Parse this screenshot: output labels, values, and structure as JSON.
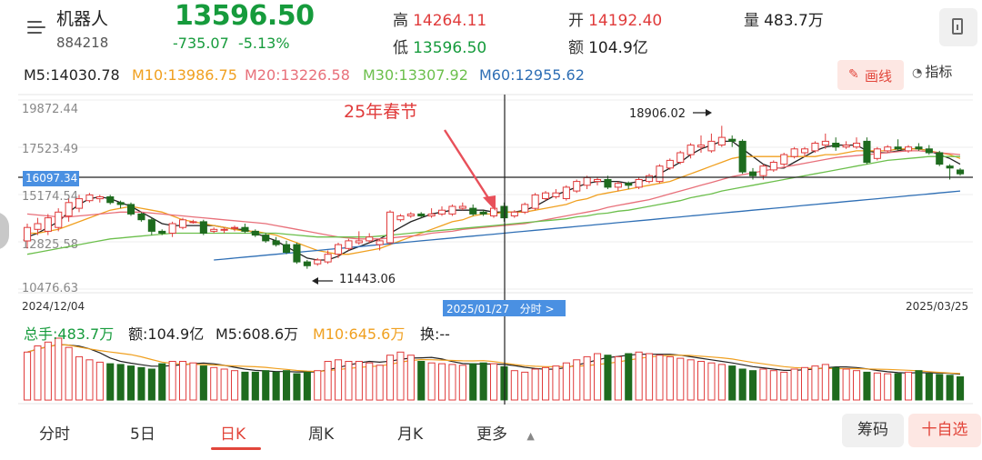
{
  "header": {
    "name": "机器人",
    "code": "884218",
    "price": "13596.50",
    "change": "-735.07",
    "change_pct": "-5.13%",
    "high_label": "高",
    "high": "14264.11",
    "low_label": "低",
    "low": "13596.50",
    "open_label": "开",
    "open": "14192.40",
    "amount_label": "额",
    "amount": "104.9亿",
    "volume_label": "量",
    "volume": "483.7万"
  },
  "ma_row": {
    "ma5": "M5:14030.78",
    "ma10": "M10:13986.75",
    "ma20": "M20:13226.58",
    "ma30": "M30:13307.92",
    "ma60": "M60:12955.62",
    "draw_label": "画线",
    "indicator_label": "指标"
  },
  "colors": {
    "up": "#e03b3b",
    "down": "#1e6b1e",
    "ma5": "#222222",
    "ma10": "#f0a020",
    "ma20": "#e8707a",
    "ma30": "#6cbf4c",
    "ma60": "#2f6fb5"
  },
  "chart": {
    "y_ticks": [
      "19872.44",
      "17523.49",
      "15174.54",
      "12825.58",
      "10476.63"
    ],
    "crosshair_price": "16097.34",
    "crosshair_date": "2025/01/27",
    "intraday_link": "分时 >",
    "date_start": "2024/12/04",
    "date_end": "2025/03/25",
    "annotation": "25年春节",
    "high_mark": "18906.02",
    "low_mark": "11443.06"
  },
  "volume_header": {
    "total": "总手:483.7万",
    "amount": "额:104.9亿",
    "m5": "M5:608.6万",
    "m10": "M10:645.6万",
    "turnover": "换:--"
  },
  "tabs": [
    "分时",
    "5日",
    "日K",
    "周K",
    "月K",
    "更多"
  ],
  "buttons": {
    "chips": "筹码",
    "add_watch": "十自选"
  },
  "chart_data": {
    "type": "candlestick",
    "x_range": [
      "2024/12/04",
      "2025/03/25"
    ],
    "ylim": [
      10476.63,
      19872.44
    ],
    "candles": [
      {
        "o": 12900,
        "c": 13600,
        "h": 13800,
        "l": 12500
      },
      {
        "o": 13500,
        "c": 13800,
        "h": 14100,
        "l": 13200
      },
      {
        "o": 13400,
        "c": 14100,
        "h": 14300,
        "l": 13200
      },
      {
        "o": 13600,
        "c": 14400,
        "h": 14600,
        "l": 13400
      },
      {
        "o": 14200,
        "c": 14900,
        "h": 15100,
        "l": 13900
      },
      {
        "o": 14600,
        "c": 15100,
        "h": 15300,
        "l": 14400
      },
      {
        "o": 15000,
        "c": 15300,
        "h": 15400,
        "l": 14900
      },
      {
        "o": 15100,
        "c": 15200,
        "h": 15300,
        "l": 14900
      },
      {
        "o": 15200,
        "c": 14900,
        "h": 15300,
        "l": 14800
      },
      {
        "o": 14900,
        "c": 14800,
        "h": 15000,
        "l": 14600
      },
      {
        "o": 14800,
        "c": 14300,
        "h": 14900,
        "l": 14200
      },
      {
        "o": 14300,
        "c": 14000,
        "h": 14400,
        "l": 13900
      },
      {
        "o": 14000,
        "c": 13400,
        "h": 14100,
        "l": 13200
      },
      {
        "o": 13400,
        "c": 13300,
        "h": 13500,
        "l": 13200
      },
      {
        "o": 13300,
        "c": 13800,
        "h": 13900,
        "l": 13100
      },
      {
        "o": 13600,
        "c": 14000,
        "h": 14100,
        "l": 13500
      },
      {
        "o": 13900,
        "c": 13900,
        "h": 14000,
        "l": 13800
      },
      {
        "o": 13900,
        "c": 13300,
        "h": 14000,
        "l": 13200
      },
      {
        "o": 13400,
        "c": 13500,
        "h": 13600,
        "l": 13300
      },
      {
        "o": 13500,
        "c": 13500,
        "h": 13600,
        "l": 13300
      },
      {
        "o": 13600,
        "c": 13600,
        "h": 13700,
        "l": 13400
      },
      {
        "o": 13600,
        "c": 13400,
        "h": 13800,
        "l": 13300
      },
      {
        "o": 13400,
        "c": 13200,
        "h": 13500,
        "l": 13100
      },
      {
        "o": 13200,
        "c": 12900,
        "h": 13300,
        "l": 12800
      },
      {
        "o": 12900,
        "c": 12700,
        "h": 13100,
        "l": 12600
      },
      {
        "o": 12700,
        "c": 12300,
        "h": 12900,
        "l": 12200
      },
      {
        "o": 12700,
        "c": 11800,
        "h": 12800,
        "l": 11700
      },
      {
        "o": 11800,
        "c": 11600,
        "h": 11900,
        "l": 11443
      },
      {
        "o": 11700,
        "c": 11900,
        "h": 12000,
        "l": 11600
      },
      {
        "o": 11800,
        "c": 12200,
        "h": 12400,
        "l": 11700
      },
      {
        "o": 12200,
        "c": 12700,
        "h": 12800,
        "l": 12000
      },
      {
        "o": 12500,
        "c": 12900,
        "h": 13000,
        "l": 12400
      },
      {
        "o": 12800,
        "c": 12900,
        "h": 13400,
        "l": 12700
      },
      {
        "o": 12900,
        "c": 13100,
        "h": 13300,
        "l": 12800
      },
      {
        "o": 12700,
        "c": 12900,
        "h": 13000,
        "l": 12400
      },
      {
        "o": 12800,
        "c": 14400,
        "h": 14500,
        "l": 12700
      },
      {
        "o": 14000,
        "c": 14200,
        "h": 14300,
        "l": 13900
      },
      {
        "o": 14200,
        "c": 14300,
        "h": 14400,
        "l": 14100
      },
      {
        "o": 14300,
        "c": 14200,
        "h": 14400,
        "l": 14100
      },
      {
        "o": 14200,
        "c": 14300,
        "h": 14600,
        "l": 14100
      },
      {
        "o": 14300,
        "c": 14500,
        "h": 14700,
        "l": 14200
      },
      {
        "o": 14300,
        "c": 14700,
        "h": 14800,
        "l": 14200
      },
      {
        "o": 14600,
        "c": 14700,
        "h": 14900,
        "l": 14500
      },
      {
        "o": 14600,
        "c": 14300,
        "h": 14800,
        "l": 14200
      },
      {
        "o": 14400,
        "c": 14300,
        "h": 14500,
        "l": 14200
      },
      {
        "o": 14200,
        "c": 14600,
        "h": 14700,
        "l": 14100
      },
      {
        "o": 14700,
        "c": 14100,
        "h": 14900,
        "l": 13900
      },
      {
        "o": 14200,
        "c": 14400,
        "h": 14500,
        "l": 14100
      },
      {
        "o": 14400,
        "c": 14800,
        "h": 14900,
        "l": 14300
      },
      {
        "o": 14600,
        "c": 15300,
        "h": 15400,
        "l": 14500
      },
      {
        "o": 15100,
        "c": 15400,
        "h": 15500,
        "l": 15000
      },
      {
        "o": 15200,
        "c": 15400,
        "h": 15600,
        "l": 15100
      },
      {
        "o": 15100,
        "c": 15700,
        "h": 15800,
        "l": 15000
      },
      {
        "o": 15500,
        "c": 16000,
        "h": 16100,
        "l": 15400
      },
      {
        "o": 15800,
        "c": 16200,
        "h": 16300,
        "l": 15600
      },
      {
        "o": 16000,
        "c": 16100,
        "h": 16200,
        "l": 15800
      },
      {
        "o": 16100,
        "c": 15700,
        "h": 16300,
        "l": 15600
      },
      {
        "o": 15700,
        "c": 15900,
        "h": 16000,
        "l": 15500
      },
      {
        "o": 15900,
        "c": 15800,
        "h": 16000,
        "l": 15600
      },
      {
        "o": 15700,
        "c": 16100,
        "h": 16200,
        "l": 15600
      },
      {
        "o": 16000,
        "c": 16300,
        "h": 16400,
        "l": 15900
      },
      {
        "o": 16000,
        "c": 16800,
        "h": 16900,
        "l": 15900
      },
      {
        "o": 16700,
        "c": 17100,
        "h": 17200,
        "l": 16600
      },
      {
        "o": 17000,
        "c": 17500,
        "h": 17600,
        "l": 16900
      },
      {
        "o": 17400,
        "c": 17900,
        "h": 18000,
        "l": 17200
      },
      {
        "o": 17800,
        "c": 17900,
        "h": 18400,
        "l": 17500
      },
      {
        "o": 17600,
        "c": 18100,
        "h": 18500,
        "l": 17500
      },
      {
        "o": 17900,
        "c": 18300,
        "h": 18906,
        "l": 17800
      },
      {
        "o": 18200,
        "c": 18100,
        "h": 18400,
        "l": 17800
      },
      {
        "o": 18100,
        "c": 16500,
        "h": 18200,
        "l": 16400
      },
      {
        "o": 16500,
        "c": 16300,
        "h": 16700,
        "l": 16100
      },
      {
        "o": 16300,
        "c": 16800,
        "h": 16900,
        "l": 16100
      },
      {
        "o": 16600,
        "c": 17000,
        "h": 17100,
        "l": 16500
      },
      {
        "o": 16900,
        "c": 17400,
        "h": 17500,
        "l": 16800
      },
      {
        "o": 17300,
        "c": 17700,
        "h": 17800,
        "l": 17200
      },
      {
        "o": 17500,
        "c": 17700,
        "h": 17800,
        "l": 17300
      },
      {
        "o": 17600,
        "c": 18000,
        "h": 18100,
        "l": 17500
      },
      {
        "o": 17900,
        "c": 18100,
        "h": 18500,
        "l": 17700
      },
      {
        "o": 18000,
        "c": 17800,
        "h": 18300,
        "l": 17600
      },
      {
        "o": 17800,
        "c": 17900,
        "h": 18100,
        "l": 17700
      },
      {
        "o": 17800,
        "c": 18000,
        "h": 18300,
        "l": 17700
      },
      {
        "o": 18100,
        "c": 17000,
        "h": 18300,
        "l": 16900
      },
      {
        "o": 17200,
        "c": 17700,
        "h": 17800,
        "l": 17100
      },
      {
        "o": 17600,
        "c": 17800,
        "h": 17900,
        "l": 17500
      },
      {
        "o": 17800,
        "c": 17700,
        "h": 18200,
        "l": 17600
      },
      {
        "o": 17600,
        "c": 17800,
        "h": 17900,
        "l": 17500
      },
      {
        "o": 17800,
        "c": 17700,
        "h": 18000,
        "l": 17600
      },
      {
        "o": 17700,
        "c": 17500,
        "h": 17900,
        "l": 17400
      },
      {
        "o": 17500,
        "c": 16900,
        "h": 17600,
        "l": 16800
      },
      {
        "o": 16800,
        "c": 16700,
        "h": 16900,
        "l": 16100
      },
      {
        "o": 16600,
        "c": 16400,
        "h": 16700,
        "l": 16300
      }
    ],
    "volume": [
      62,
      70,
      75,
      80,
      68,
      56,
      52,
      49,
      47,
      46,
      44,
      42,
      40,
      47,
      50,
      50,
      48,
      44,
      42,
      40,
      38,
      36,
      36,
      38,
      36,
      38,
      34,
      36,
      38,
      50,
      52,
      50,
      50,
      48,
      45,
      58,
      62,
      58,
      50,
      48,
      47,
      46,
      45,
      47,
      48,
      47,
      43,
      38,
      36,
      40,
      42,
      44,
      48,
      52,
      56,
      60,
      58,
      56,
      60,
      62,
      60,
      58,
      56,
      54,
      52,
      50,
      48,
      46,
      44,
      40,
      38,
      40,
      38,
      36,
      40,
      42,
      44,
      46,
      42,
      40,
      38,
      36,
      35,
      34,
      34,
      36,
      38,
      34,
      33,
      32,
      30
    ],
    "ma_curves": {
      "M5": [
        13100,
        13300,
        13600,
        13900,
        14400,
        14800,
        15100,
        15200,
        15100,
        14900,
        14700,
        14400,
        14100,
        13800,
        13700,
        13700,
        13700,
        13700,
        13700,
        13600,
        13500,
        13500,
        13300,
        13100,
        12900,
        12600,
        12300,
        12000,
        11900,
        11900,
        12100,
        12400,
        12600,
        12800,
        13000,
        13300,
        13600,
        13900,
        14100,
        14300,
        14400,
        14500,
        14500,
        14500,
        14500,
        14400,
        14400,
        14400,
        14500,
        14700,
        15000,
        15300,
        15500,
        15700,
        15900,
        16000,
        16000,
        16000,
        15900,
        16000,
        16100,
        16400,
        16700,
        17000,
        17400,
        17700,
        17900,
        18100,
        18100,
        17700,
        17300,
        16900,
        16700,
        16700,
        17000,
        17300,
        17600,
        17800,
        17900,
        17900,
        17900,
        17600,
        17500,
        17500,
        17600,
        17700,
        17700,
        17600,
        17400,
        17200,
        16900
      ],
      "M10": [
        13300,
        13300,
        13400,
        13500,
        13700,
        13900,
        14100,
        14300,
        14500,
        14600,
        14700,
        14600,
        14500,
        14400,
        14200,
        14000,
        13900,
        13800,
        13700,
        13600,
        13500,
        13400,
        13400,
        13300,
        13200,
        13000,
        12800,
        12600,
        12400,
        12300,
        12200,
        12200,
        12300,
        12400,
        12500,
        12700,
        12900,
        13100,
        13300,
        13500,
        13700,
        13900,
        14000,
        14200,
        14300,
        14300,
        14400,
        14400,
        14400,
        14500,
        14600,
        14700,
        14800,
        15000,
        15100,
        15300,
        15400,
        15500,
        15600,
        15700,
        15800,
        15900,
        16000,
        16200,
        16400,
        16600,
        16800,
        17000,
        17200,
        17300,
        17300,
        17300,
        17300,
        17300,
        17300,
        17300,
        17300,
        17400,
        17400,
        17500,
        17600,
        17600,
        17600,
        17600,
        17700,
        17700,
        17700,
        17600,
        17500,
        17400,
        17200
      ],
      "M20": [
        14300,
        14250,
        14200,
        14150,
        14150,
        14200,
        14250,
        14300,
        14350,
        14400,
        14400,
        14400,
        14350,
        14300,
        14250,
        14200,
        14150,
        14100,
        14050,
        14000,
        13950,
        13900,
        13850,
        13800,
        13700,
        13600,
        13500,
        13400,
        13300,
        13200,
        13100,
        13050,
        13000,
        13000,
        13000,
        13050,
        13100,
        13150,
        13200,
        13300,
        13350,
        13400,
        13500,
        13550,
        13600,
        13650,
        13700,
        13750,
        13800,
        13900,
        14000,
        14100,
        14200,
        14300,
        14400,
        14500,
        14650,
        14750,
        14850,
        14950,
        15050,
        15200,
        15350,
        15500,
        15650,
        15800,
        15950,
        16100,
        16250,
        16350,
        16450,
        16550,
        16650,
        16750,
        16850,
        16950,
        17050,
        17150,
        17250,
        17300,
        17350,
        17400,
        17450,
        17500,
        17550,
        17600,
        17600,
        17550,
        17500,
        17450,
        17400
      ],
      "M30": [
        12200,
        12300,
        12400,
        12500,
        12600,
        12700,
        12800,
        12900,
        13000,
        13050,
        13100,
        13150,
        13200,
        13250,
        13300,
        13300,
        13300,
        13300,
        13300,
        13300,
        13300,
        13300,
        13300,
        13300,
        13300,
        13250,
        13200,
        13150,
        13100,
        13100,
        13100,
        13100,
        13100,
        13100,
        13150,
        13200,
        13250,
        13300,
        13350,
        13400,
        13450,
        13500,
        13550,
        13600,
        13650,
        13700,
        13750,
        13800,
        13850,
        13900,
        13950,
        14000,
        14050,
        14150,
        14200,
        14300,
        14350,
        14450,
        14500,
        14600,
        14700,
        14800,
        14900,
        15000,
        15150,
        15250,
        15350,
        15500,
        15600,
        15700,
        15800,
        15900,
        16000,
        16100,
        16200,
        16300,
        16400,
        16500,
        16600,
        16700,
        16800,
        16900,
        17000,
        17100,
        17150,
        17200,
        17250,
        17300,
        17300,
        17300,
        17300
      ],
      "M60": [
        null,
        null,
        null,
        null,
        null,
        null,
        null,
        null,
        null,
        null,
        null,
        null,
        null,
        null,
        null,
        null,
        null,
        null,
        11900,
        11950,
        12000,
        12050,
        12100,
        12150,
        12200,
        12250,
        12300,
        12350,
        12400,
        12450,
        12500,
        12550,
        12600,
        12650,
        12700,
        12750,
        12800,
        12850,
        12900,
        12950,
        13000,
        13050,
        13100,
        13150,
        13200,
        13250,
        13300,
        13350,
        13400,
        13450,
        13500,
        13550,
        13600,
        13650,
        13700,
        13750,
        13800,
        13850,
        13900,
        13950,
        14000,
        14050,
        14100,
        14150,
        14200,
        14250,
        14300,
        14350,
        14400,
        14450,
        14500,
        14550,
        14600,
        14650,
        14700,
        14750,
        14800,
        14850,
        14900,
        14950,
        15000,
        15050,
        15100,
        15150,
        15200,
        15250,
        15300,
        15350,
        15400,
        15450,
        15500
      ]
    }
  }
}
